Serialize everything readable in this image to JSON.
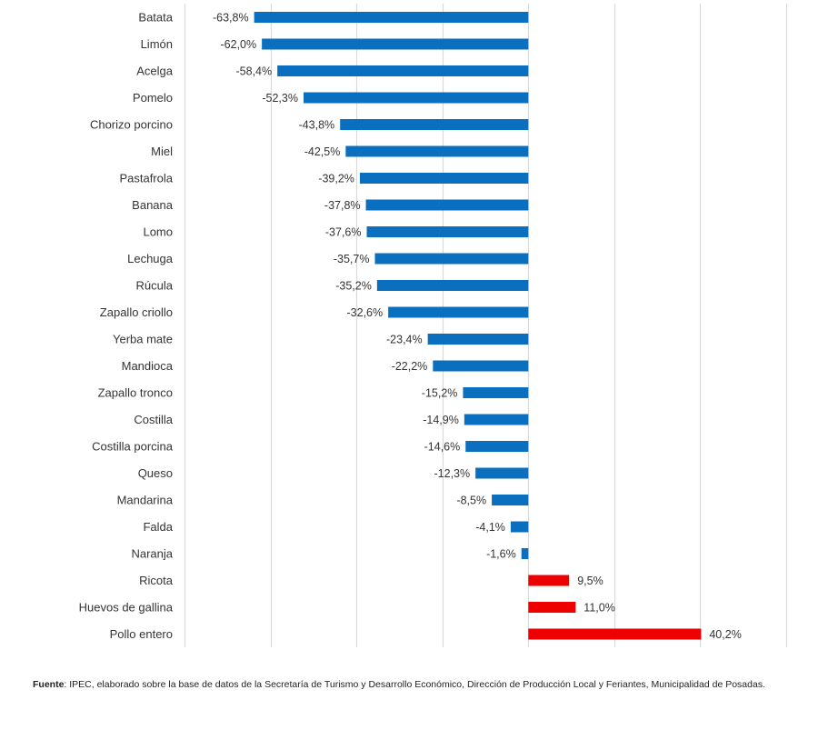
{
  "chart_data": {
    "type": "bar",
    "orientation": "horizontal",
    "title": "",
    "xlabel": "",
    "ylabel": "",
    "xlim": [
      -80,
      60
    ],
    "grid": true,
    "grid_step": 20,
    "tick_labels_visible": false,
    "legend": null,
    "value_format": "percent-comma-1dp",
    "colors": {
      "negative": "#0b6fc0",
      "positive": "#ee0000"
    },
    "categories": [
      "Batata",
      "Limón",
      "Acelga",
      "Pomelo",
      "Chorizo porcino",
      "Miel",
      "Pastafrola",
      "Banana",
      "Lomo",
      "Lechuga",
      "Rúcula",
      "Zapallo criollo",
      "Yerba mate",
      "Mandioca",
      "Zapallo tronco",
      "Costilla",
      "Costilla porcina",
      "Queso",
      "Mandarina",
      "Falda",
      "Naranja",
      "Ricota",
      "Huevos de gallina",
      "Pollo entero"
    ],
    "values": [
      -63.8,
      -62.0,
      -58.4,
      -52.3,
      -43.8,
      -42.5,
      -39.2,
      -37.8,
      -37.6,
      -35.7,
      -35.2,
      -32.6,
      -23.4,
      -22.2,
      -15.2,
      -14.9,
      -14.6,
      -12.3,
      -8.5,
      -4.1,
      -1.6,
      9.5,
      11.0,
      40.2
    ],
    "value_labels": [
      "-63,8%",
      "-62,0%",
      "-58,4%",
      "-52,3%",
      "-43,8%",
      "-42,5%",
      "-39,2%",
      "-37,8%",
      "-37,6%",
      "-35,7%",
      "-35,2%",
      "-32,6%",
      "-23,4%",
      "-22,2%",
      "-15,2%",
      "-14,9%",
      "-14,6%",
      "-12,3%",
      "-8,5%",
      "-4,1%",
      "-1,6%",
      "9,5%",
      "11,0%",
      "40,2%"
    ]
  },
  "source": {
    "label": "Fuente",
    "text": ": IPEC, elaborado sobre la base de datos de la Secretaría de Turismo y Desarrollo Económico, Dirección de Producción Local y Feriantes, Municipalidad de Posadas."
  }
}
